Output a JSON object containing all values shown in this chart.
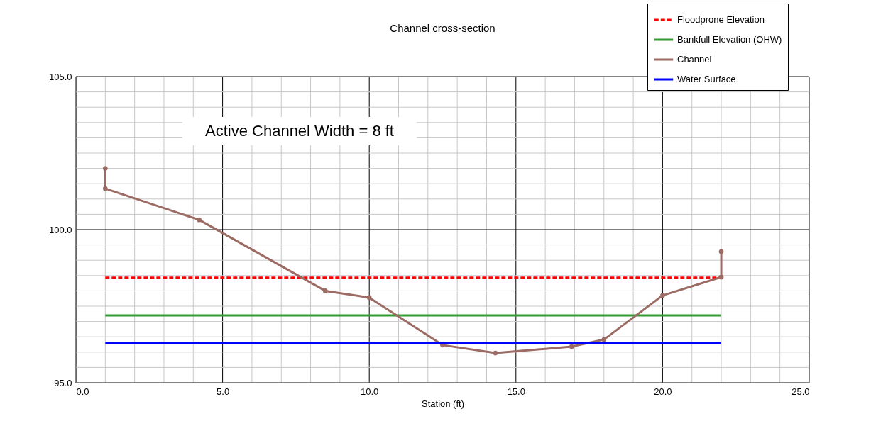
{
  "chart_data": {
    "type": "line",
    "title": "Channel cross-section",
    "xlabel": "Station (ft)",
    "xlim": [
      0,
      25
    ],
    "ylim": [
      95,
      105
    ],
    "xticks": [
      {
        "value": 0,
        "label": "0.0"
      },
      {
        "value": 1,
        "label": null
      },
      {
        "value": 2,
        "label": null
      },
      {
        "value": 3,
        "label": null
      },
      {
        "value": 4,
        "label": null
      },
      {
        "value": 5,
        "label": "5.0"
      },
      {
        "value": 6,
        "label": null
      },
      {
        "value": 7,
        "label": null
      },
      {
        "value": 8,
        "label": null
      },
      {
        "value": 9,
        "label": null
      },
      {
        "value": 10,
        "label": "10.0"
      },
      {
        "value": 11,
        "label": null
      },
      {
        "value": 12,
        "label": null
      },
      {
        "value": 13,
        "label": null
      },
      {
        "value": 14,
        "label": null
      },
      {
        "value": 15,
        "label": "15.0"
      },
      {
        "value": 16,
        "label": null
      },
      {
        "value": 17,
        "label": null
      },
      {
        "value": 18,
        "label": null
      },
      {
        "value": 19,
        "label": null
      },
      {
        "value": 20,
        "label": "20.0"
      },
      {
        "value": 21,
        "label": null
      },
      {
        "value": 22,
        "label": null
      },
      {
        "value": 23,
        "label": null
      },
      {
        "value": 24,
        "label": null
      },
      {
        "value": 25,
        "label": "25.0"
      }
    ],
    "yticks": [
      {
        "value": 95,
        "label": "95.0"
      },
      {
        "value": 95.5,
        "label": null
      },
      {
        "value": 96,
        "label": null
      },
      {
        "value": 96.5,
        "label": null
      },
      {
        "value": 97,
        "label": null
      },
      {
        "value": 97.5,
        "label": null
      },
      {
        "value": 98,
        "label": null
      },
      {
        "value": 98.5,
        "label": null
      },
      {
        "value": 99,
        "label": null
      },
      {
        "value": 99.5,
        "label": null
      },
      {
        "value": 100,
        "label": "100.0"
      },
      {
        "value": 100.5,
        "label": null
      },
      {
        "value": 101,
        "label": null
      },
      {
        "value": 101.5,
        "label": null
      },
      {
        "value": 102,
        "label": null
      },
      {
        "value": 102.5,
        "label": null
      },
      {
        "value": 103,
        "label": null
      },
      {
        "value": 103.5,
        "label": null
      },
      {
        "value": 104,
        "label": null
      },
      {
        "value": 104.5,
        "label": null
      },
      {
        "value": 105,
        "label": "105.0"
      }
    ],
    "grid": true,
    "legend": "top right",
    "annotations": [
      "Active Channel Width = 8 ft"
    ],
    "series": [
      {
        "name": "Floodprone Elevation",
        "color": "#ff0000",
        "line_style": "dashed",
        "marker": "none",
        "x": [
          1,
          22
        ],
        "values": [
          98.43,
          98.43
        ]
      },
      {
        "name": "Bankfull Elevation (OHW)",
        "color": "#339933",
        "line_style": "solid",
        "marker": "none",
        "x": [
          1,
          22
        ],
        "values": [
          97.2,
          97.2
        ]
      },
      {
        "name": "Channel",
        "color": "#9c6b64",
        "line_style": "solid",
        "marker": "circle",
        "x": [
          1,
          1,
          4.2,
          8.5,
          10,
          12.5,
          14.3,
          16.9,
          18,
          20,
          22,
          22
        ],
        "values": [
          102.0,
          101.34,
          100.32,
          98.0,
          97.78,
          96.23,
          95.97,
          96.18,
          96.41,
          97.85,
          98.45,
          99.28
        ]
      },
      {
        "name": "Water Surface",
        "color": "#0000ff",
        "line_style": "solid",
        "marker": "none",
        "x": [
          1,
          22
        ],
        "values": [
          96.3,
          96.3
        ]
      }
    ]
  }
}
